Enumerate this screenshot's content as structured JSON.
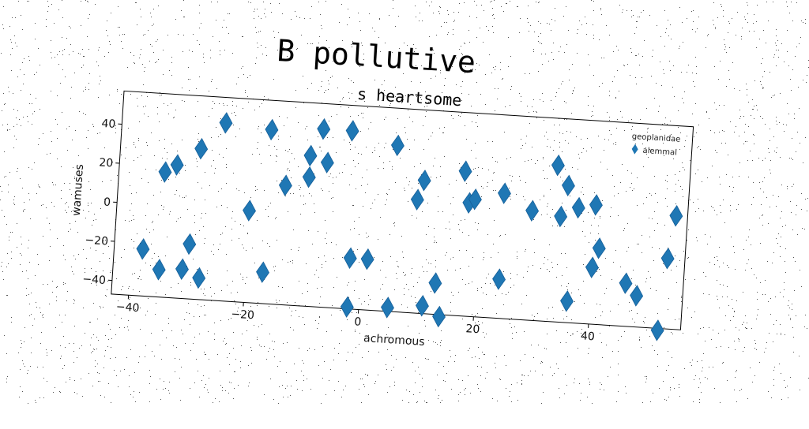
{
  "figure": {
    "suptitle": "B pollutive"
  },
  "chart_data": {
    "type": "scatter",
    "title": "s heartsome",
    "xlabel": "achromous",
    "ylabel": "wamuses",
    "xlim": [
      -43,
      56
    ],
    "ylim": [
      -47,
      57
    ],
    "xticks": [
      -40,
      -20,
      0,
      20,
      40
    ],
    "yticks": [
      -40,
      -20,
      0,
      20,
      40
    ],
    "grid": false,
    "legend": {
      "title": "geoplanidae",
      "placement": "top-right"
    },
    "marker": "thin_diamond",
    "series": [
      {
        "name": "alemmal",
        "color": "#1f77b4",
        "points": [
          [
            -35,
            17
          ],
          [
            -33,
            21
          ],
          [
            -29,
            30
          ],
          [
            -25,
            44
          ],
          [
            -17,
            42
          ],
          [
            -10,
            30
          ],
          [
            -8,
            44
          ],
          [
            -7,
            27
          ],
          [
            -3,
            44
          ],
          [
            -10,
            19
          ],
          [
            -14,
            14
          ],
          [
            -20,
            0
          ],
          [
            5,
            38
          ],
          [
            10,
            21
          ],
          [
            9,
            11
          ],
          [
            17,
            27
          ],
          [
            18,
            11
          ],
          [
            19,
            13
          ],
          [
            24,
            17
          ],
          [
            29,
            9
          ],
          [
            33,
            33
          ],
          [
            35,
            23
          ],
          [
            34,
            7
          ],
          [
            37,
            12
          ],
          [
            40,
            14
          ],
          [
            54,
            11
          ],
          [
            -38,
            -23
          ],
          [
            -35,
            -33
          ],
          [
            -31,
            -32
          ],
          [
            -30,
            -19
          ],
          [
            -28,
            -36
          ],
          [
            -17,
            -31
          ],
          [
            -2,
            -21
          ],
          [
            1,
            -21
          ],
          [
            -2,
            -46
          ],
          [
            5,
            -45
          ],
          [
            11,
            -43
          ],
          [
            13,
            -31
          ],
          [
            14,
            -48
          ],
          [
            24,
            -27
          ],
          [
            36,
            -36
          ],
          [
            40,
            -18
          ],
          [
            41,
            -8
          ],
          [
            46,
            -25
          ],
          [
            48,
            -31
          ],
          [
            53,
            -11
          ],
          [
            52,
            -48
          ]
        ]
      }
    ]
  }
}
